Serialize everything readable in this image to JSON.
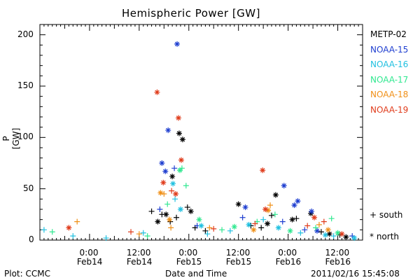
{
  "header": {
    "title": "Hemispheric Power [GW]"
  },
  "footer": {
    "left": "Plot: CCMC",
    "center": "Date and Time",
    "right": "2011/02/16 15:45:08"
  },
  "hemisphere_key": {
    "south": "south",
    "north": "north",
    "south_symbol": "+",
    "north_symbol": "*"
  },
  "chart_data": {
    "type": "scatter",
    "title": "Hemispheric Power [GW]",
    "xlabel": "Date and Time",
    "ylabel": "P [GW]",
    "ylim": [
      0,
      210
    ],
    "xlim": [
      "2011-02-13 12:00",
      "2011-02-16 18:00"
    ],
    "yticks": [
      "0",
      "50",
      "100",
      "150",
      "200"
    ],
    "xticks": [
      {
        "time": "2011-02-14 00:00",
        "label1": "0:00",
        "label2": "Feb14"
      },
      {
        "time": "2011-02-14 12:00",
        "label1": "12:00",
        "label2": "Feb14"
      },
      {
        "time": "2011-02-15 00:00",
        "label1": "0:00",
        "label2": "Feb15"
      },
      {
        "time": "2011-02-15 12:00",
        "label1": "12:00",
        "label2": "Feb15"
      },
      {
        "time": "2011-02-16 00:00",
        "label1": "0:00",
        "label2": "Feb16"
      },
      {
        "time": "2011-02-16 12:00",
        "label1": "12:00",
        "label2": "Feb16"
      }
    ],
    "legend_placement": "right",
    "series": [
      {
        "name": "METP-02",
        "color": "#000000",
        "south": [
          [
            "2011-02-14 15:00",
            28
          ],
          [
            "2011-02-14 17:30",
            25
          ],
          [
            "2011-02-14 19:30",
            18
          ],
          [
            "2011-02-14 21:00",
            22
          ],
          [
            "2011-02-14 23:40",
            32
          ],
          [
            "2011-02-15 01:30",
            12
          ],
          [
            "2011-02-15 04:00",
            9
          ],
          [
            "2011-02-15 15:00",
            14
          ],
          [
            "2011-02-15 17:30",
            12
          ],
          [
            "2011-02-15 20:00",
            24
          ],
          [
            "2011-02-16 02:00",
            21
          ],
          [
            "2011-02-16 08:00",
            8
          ],
          [
            "2011-02-16 12:30",
            5
          ]
        ],
        "north": [
          [
            "2011-02-14 16:30",
            18
          ],
          [
            "2011-02-14 18:30",
            25
          ],
          [
            "2011-02-14 20:00",
            62
          ],
          [
            "2011-02-14 21:40",
            104
          ],
          [
            "2011-02-14 22:30",
            98
          ],
          [
            "2011-02-15 00:30",
            28
          ],
          [
            "2011-02-15 12:00",
            35
          ],
          [
            "2011-02-15 19:00",
            16
          ],
          [
            "2011-02-15 21:00",
            44
          ],
          [
            "2011-02-16 01:00",
            20
          ],
          [
            "2011-02-16 05:30",
            26
          ],
          [
            "2011-02-16 10:00",
            6
          ],
          [
            "2011-02-16 14:00",
            3
          ]
        ]
      },
      {
        "name": "NOAA-15",
        "color": "#1f3fd0",
        "south": [
          [
            "2011-02-14 17:00",
            30
          ],
          [
            "2011-02-14 20:30",
            70
          ],
          [
            "2011-02-15 02:00",
            14
          ],
          [
            "2011-02-15 13:00",
            22
          ],
          [
            "2011-02-15 22:40",
            18
          ],
          [
            "2011-02-16 04:00",
            10
          ],
          [
            "2011-02-16 15:30",
            4
          ]
        ],
        "north": [
          [
            "2011-02-14 17:30",
            75
          ],
          [
            "2011-02-14 18:20",
            67
          ],
          [
            "2011-02-14 19:00",
            107
          ],
          [
            "2011-02-14 21:10",
            191
          ],
          [
            "2011-02-15 13:40",
            32
          ],
          [
            "2011-02-15 23:00",
            53
          ],
          [
            "2011-02-16 01:30",
            34
          ],
          [
            "2011-02-16 02:20",
            38
          ],
          [
            "2011-02-16 05:40",
            28
          ],
          [
            "2011-02-16 07:00",
            9
          ]
        ]
      },
      {
        "name": "NOAA-16",
        "color": "#20c0e0",
        "south": [
          [
            "2011-02-13 13:00",
            10
          ],
          [
            "2011-02-13 20:00",
            4
          ],
          [
            "2011-02-14 04:00",
            2
          ],
          [
            "2011-02-14 13:00",
            7
          ],
          [
            "2011-02-14 20:40",
            40
          ],
          [
            "2011-02-15 04:30",
            6
          ],
          [
            "2011-02-15 10:00",
            9
          ],
          [
            "2011-02-15 18:00",
            20
          ],
          [
            "2011-02-16 03:00",
            7
          ],
          [
            "2011-02-16 11:00",
            4
          ]
        ],
        "north": [
          [
            "2011-02-14 20:10",
            55
          ],
          [
            "2011-02-14 22:00",
            30
          ],
          [
            "2011-02-15 03:00",
            14
          ],
          [
            "2011-02-15 14:30",
            15
          ],
          [
            "2011-02-15 21:40",
            12
          ],
          [
            "2011-02-16 09:00",
            5
          ],
          [
            "2011-02-16 16:00",
            2
          ]
        ]
      },
      {
        "name": "NOAA-17",
        "color": "#30e890",
        "south": [
          [
            "2011-02-13 15:00",
            8
          ],
          [
            "2011-02-14 14:00",
            4
          ],
          [
            "2011-02-14 18:50",
            35
          ],
          [
            "2011-02-14 22:20",
            70
          ],
          [
            "2011-02-14 23:20",
            53
          ],
          [
            "2011-02-15 08:00",
            10
          ],
          [
            "2011-02-15 16:30",
            18
          ],
          [
            "2011-02-15 20:50",
            25
          ],
          [
            "2011-02-16 06:40",
            12
          ],
          [
            "2011-02-16 10:30",
            21
          ]
        ],
        "north": [
          [
            "2011-02-14 21:50",
            68
          ],
          [
            "2011-02-15 02:30",
            20
          ],
          [
            "2011-02-15 11:00",
            13
          ],
          [
            "2011-02-16 00:30",
            9
          ],
          [
            "2011-02-16 12:00",
            7
          ]
        ]
      },
      {
        "name": "NOAA-18",
        "color": "#f09018",
        "south": [
          [
            "2011-02-13 21:00",
            18
          ],
          [
            "2011-02-14 12:00",
            6
          ],
          [
            "2011-02-14 18:00",
            45
          ],
          [
            "2011-02-14 19:40",
            12
          ],
          [
            "2011-02-15 05:00",
            12
          ],
          [
            "2011-02-15 19:40",
            34
          ],
          [
            "2011-02-16 07:30",
            15
          ]
        ],
        "north": [
          [
            "2011-02-14 17:10",
            46
          ],
          [
            "2011-02-14 19:20",
            20
          ],
          [
            "2011-02-15 15:40",
            10
          ],
          [
            "2011-02-15 19:10",
            29
          ],
          [
            "2011-02-16 09:40",
            10
          ]
        ]
      },
      {
        "name": "NOAA-19",
        "color": "#e03c1c",
        "south": [
          [
            "2011-02-14 10:00",
            8
          ],
          [
            "2011-02-14 19:50",
            48
          ],
          [
            "2011-02-15 06:00",
            11
          ],
          [
            "2011-02-15 16:00",
            16
          ],
          [
            "2011-02-16 04:40",
            14
          ],
          [
            "2011-02-16 08:40",
            18
          ]
        ],
        "north": [
          [
            "2011-02-13 19:00",
            12
          ],
          [
            "2011-02-14 16:20",
            144
          ],
          [
            "2011-02-14 17:50",
            56
          ],
          [
            "2011-02-14 20:50",
            45
          ],
          [
            "2011-02-14 21:30",
            119
          ],
          [
            "2011-02-14 22:10",
            78
          ],
          [
            "2011-02-15 17:50",
            68
          ],
          [
            "2011-02-15 18:30",
            30
          ],
          [
            "2011-02-16 06:20",
            22
          ],
          [
            "2011-02-16 13:00",
            6
          ]
        ]
      }
    ]
  }
}
